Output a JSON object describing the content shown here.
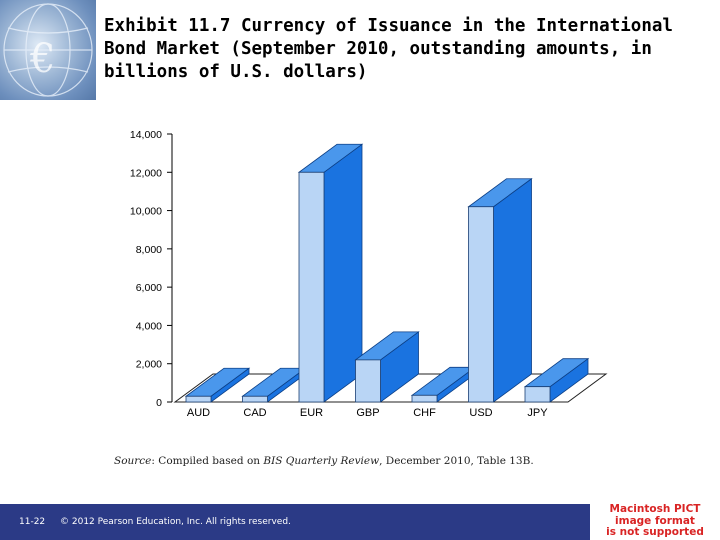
{
  "title": "Exhibit 11.7  Currency of Issuance in the International\nBond Market (September 2010, outstanding amounts, in\nbillions of U.S. dollars)",
  "source": {
    "label": "Source",
    "text": ": Compiled based on ",
    "publication": "BIS Quarterly Review",
    "tail": ", December 2010, Table 13B."
  },
  "footer": {
    "slide_number": "11-22",
    "copyright": "© 2012 Pearson Education, Inc. All rights reserved."
  },
  "pict_placeholder": [
    "Macintosh PICT",
    "image format",
    "is not supported"
  ],
  "colors": {
    "bar_front": "#b9d5f5",
    "bar_side": "#1a73e0",
    "bar_top": "#4a97ec",
    "footer": "#2b3a86",
    "placeholder_text": "#d92424"
  },
  "chart_data": {
    "type": "bar",
    "style": "3d",
    "categories": [
      "AUD",
      "CAD",
      "EUR",
      "GBP",
      "CHF",
      "USD",
      "JPY"
    ],
    "values": [
      300,
      300,
      12000,
      2200,
      350,
      10200,
      800
    ],
    "title": "",
    "xlabel": "",
    "ylabel": "",
    "ylim": [
      0,
      14000
    ],
    "yticks": [
      "0",
      "2,000",
      "4,000",
      "6,000",
      "8,000",
      "10,000",
      "12,000",
      "14,000"
    ],
    "grid": false
  }
}
